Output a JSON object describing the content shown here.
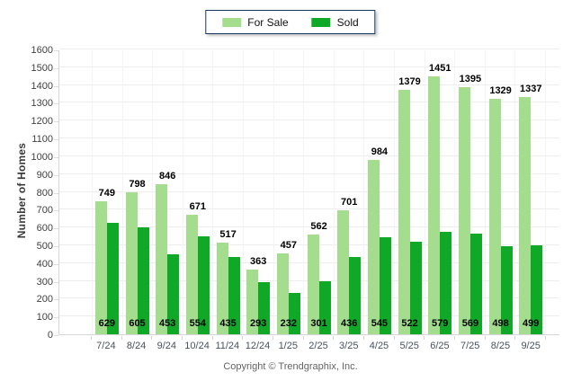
{
  "legend": {
    "items": [
      {
        "label": "For Sale",
        "color": "#a3dd8d"
      },
      {
        "label": "Sold",
        "color": "#10a827"
      }
    ]
  },
  "y_axis": {
    "title": "Number of Homes"
  },
  "footer": {
    "copyright": "Copyright © Trendgraphix, Inc."
  },
  "colors": {
    "for_sale_bar": "#a3dd8d",
    "sold_bar": "#10a827",
    "grid_line": "#ededed",
    "axis_line": "#d6d6d6",
    "value_label_text": "#000000",
    "x_tick_text": "#47525e",
    "y_tick_text": "#3f3f3f",
    "legend_border": "#16365c"
  },
  "chart_data": {
    "type": "bar",
    "title": "",
    "xlabel": "",
    "ylabel": "Number of Homes",
    "ylim": [
      0,
      1600
    ],
    "ytick_step": 100,
    "grid": true,
    "legend_position": "top-center",
    "categories": [
      "7/24",
      "8/24",
      "9/24",
      "10/24",
      "11/24",
      "12/24",
      "1/25",
      "2/25",
      "3/25",
      "4/25",
      "5/25",
      "6/25",
      "7/25",
      "8/25",
      "9/25"
    ],
    "series": [
      {
        "name": "For Sale",
        "values": [
          749,
          798,
          846,
          671,
          517,
          363,
          457,
          562,
          701,
          984,
          1379,
          1451,
          1395,
          1329,
          1337
        ]
      },
      {
        "name": "Sold",
        "values": [
          629,
          605,
          453,
          554,
          435,
          293,
          232,
          301,
          436,
          545,
          522,
          579,
          569,
          498,
          499
        ]
      }
    ]
  }
}
